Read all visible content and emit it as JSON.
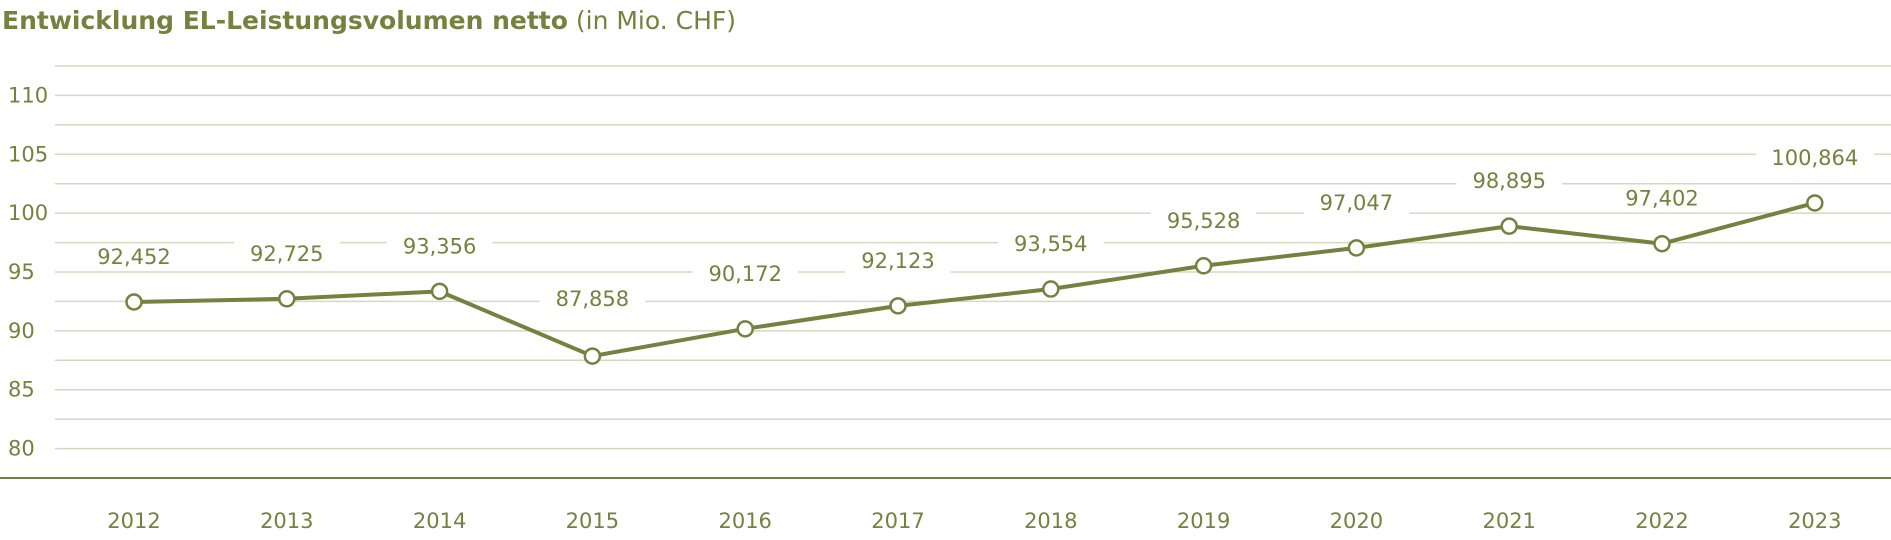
{
  "title": {
    "main": "Entwicklung EL-Leistungsvolumen netto",
    "unit": "(in Mio. CHF)"
  },
  "colors": {
    "line": "#76813f",
    "grid": "#d6d8c0",
    "axis": "#76813f",
    "text": "#76813f"
  },
  "chart_data": {
    "type": "line",
    "title": "Entwicklung EL-Leistungsvolumen netto (in Mio. CHF)",
    "xlabel": "",
    "ylabel": "",
    "x": [
      "2012",
      "2013",
      "2014",
      "2015",
      "2016",
      "2017",
      "2018",
      "2019",
      "2020",
      "2021",
      "2022",
      "2023"
    ],
    "series": [
      {
        "values": [
          92.452,
          92.725,
          93.356,
          87.858,
          90.172,
          92.123,
          93.554,
          95.528,
          97.047,
          98.895,
          97.402,
          100.864
        ]
      }
    ],
    "labels": [
      "92,452",
      "92,725",
      "93,356",
      "87,858",
      "90,172",
      "92,123",
      "93,554",
      "95,528",
      "97,047",
      "98,895",
      "97,402",
      "100,864"
    ],
    "yticks": [
      80,
      85,
      90,
      95,
      100,
      105,
      110
    ],
    "ylim": [
      77.5,
      112.5
    ],
    "grid": true,
    "legend": "none"
  }
}
